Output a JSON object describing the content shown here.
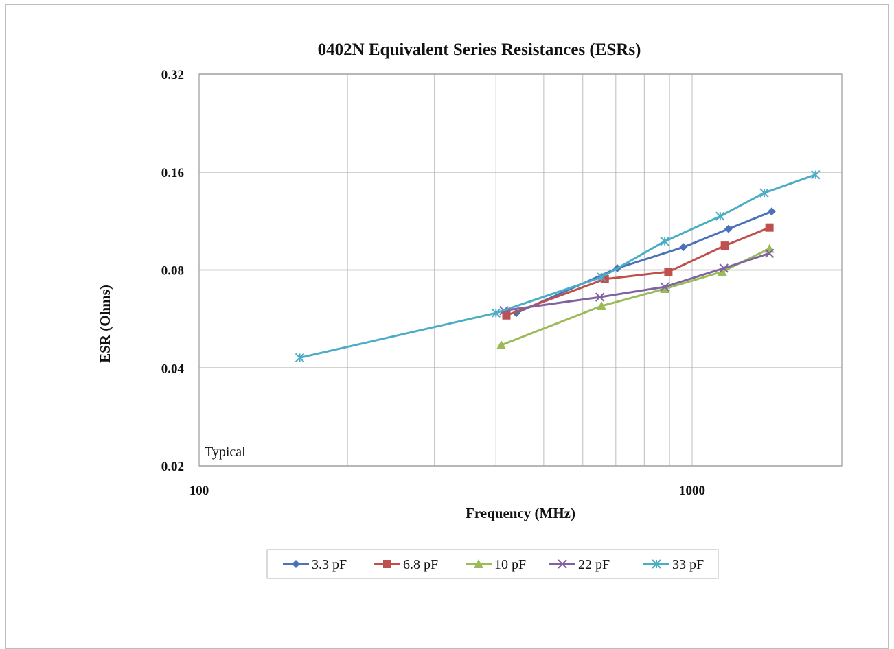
{
  "chart_data": {
    "type": "line",
    "title": "0402N Equivalent Series Resistances (ESRs)",
    "xlabel": "Frequency (MHz)",
    "ylabel": "ESR (Ohms)",
    "x_scale": "log",
    "y_scale": "log",
    "xlim": [
      100,
      1850
    ],
    "ylim": [
      0.02,
      0.32
    ],
    "x_ticks": [
      "100",
      "1000"
    ],
    "y_ticks": [
      "0.32",
      "0.16",
      "0.08",
      "0.04",
      "0.02"
    ],
    "grid": true,
    "legend_position": "bottom",
    "annotation": "Typical",
    "series": [
      {
        "name": "3.3 pF",
        "color": "#4a72b8",
        "marker": "diamond",
        "x": [
          440,
          705,
          960,
          1185,
          1450
        ],
        "y": [
          0.059,
          0.081,
          0.094,
          0.107,
          0.121
        ]
      },
      {
        "name": "6.8 pF",
        "color": "#c0504d",
        "marker": "square",
        "x": [
          420,
          665,
          895,
          1165,
          1435
        ],
        "y": [
          0.058,
          0.075,
          0.079,
          0.095,
          0.108
        ]
      },
      {
        "name": "10 pF",
        "color": "#9bbb59",
        "marker": "triangle",
        "x": [
          410,
          655,
          880,
          1150,
          1435
        ],
        "y": [
          0.047,
          0.062,
          0.07,
          0.079,
          0.093
        ]
      },
      {
        "name": "22 pF",
        "color": "#8064a2",
        "marker": "x",
        "x": [
          415,
          650,
          880,
          1160,
          1435
        ],
        "y": [
          0.06,
          0.066,
          0.071,
          0.081,
          0.09
        ]
      },
      {
        "name": "33 pF",
        "color": "#4bacc6",
        "marker": "star",
        "x": [
          160,
          400,
          655,
          880,
          1140,
          1400,
          1780
        ],
        "y": [
          0.043,
          0.059,
          0.076,
          0.098,
          0.117,
          0.138,
          0.157
        ]
      }
    ]
  }
}
